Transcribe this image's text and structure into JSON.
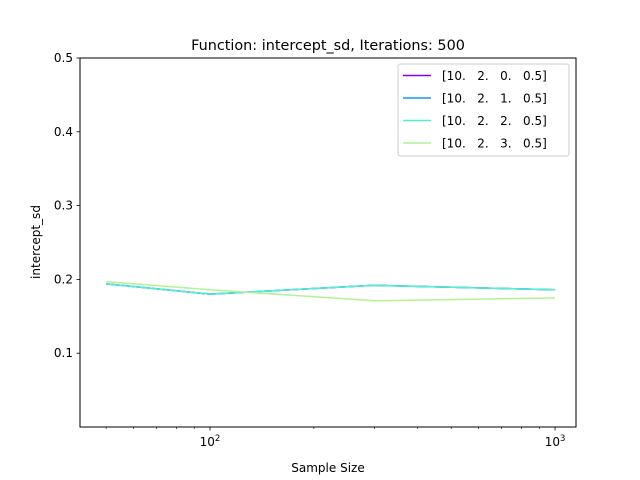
{
  "chart_data": {
    "type": "line",
    "title": "Function: intercept_sd, Iterations: 500",
    "xlabel": "Sample Size",
    "ylabel": "intercept_sd",
    "x_scale": "log",
    "xlim": [
      42,
      1150
    ],
    "ylim": [
      0.0,
      0.5
    ],
    "x_ticks": [
      {
        "value": 100,
        "label": "10",
        "exp": "2"
      },
      {
        "value": 1000,
        "label": "10",
        "exp": "3"
      }
    ],
    "y_ticks": [
      {
        "value": 0.1,
        "label": "0.1"
      },
      {
        "value": 0.2,
        "label": "0.2"
      },
      {
        "value": 0.3,
        "label": "0.3"
      },
      {
        "value": 0.4,
        "label": "0.4"
      },
      {
        "value": 0.5,
        "label": "0.5"
      }
    ],
    "grid": false,
    "legend_position": "top-right",
    "x": [
      50,
      100,
      300,
      1000
    ],
    "series": [
      {
        "name": "[10.   2.   0.   0.5]",
        "color": "#8000ff",
        "values": [
          0.194,
          0.18,
          0.192,
          0.186
        ]
      },
      {
        "name": "[10.   2.   1.   0.5]",
        "color": "#1996f3",
        "values": [
          0.194,
          0.18,
          0.192,
          0.186
        ]
      },
      {
        "name": "[10.   2.   2.   0.5]",
        "color": "#4df3ce",
        "values": [
          0.194,
          0.18,
          0.192,
          0.186
        ]
      },
      {
        "name": "[10.   2.   3.   0.5]",
        "color": "#b2f396",
        "values": [
          0.197,
          0.186,
          0.171,
          0.175
        ]
      }
    ]
  }
}
